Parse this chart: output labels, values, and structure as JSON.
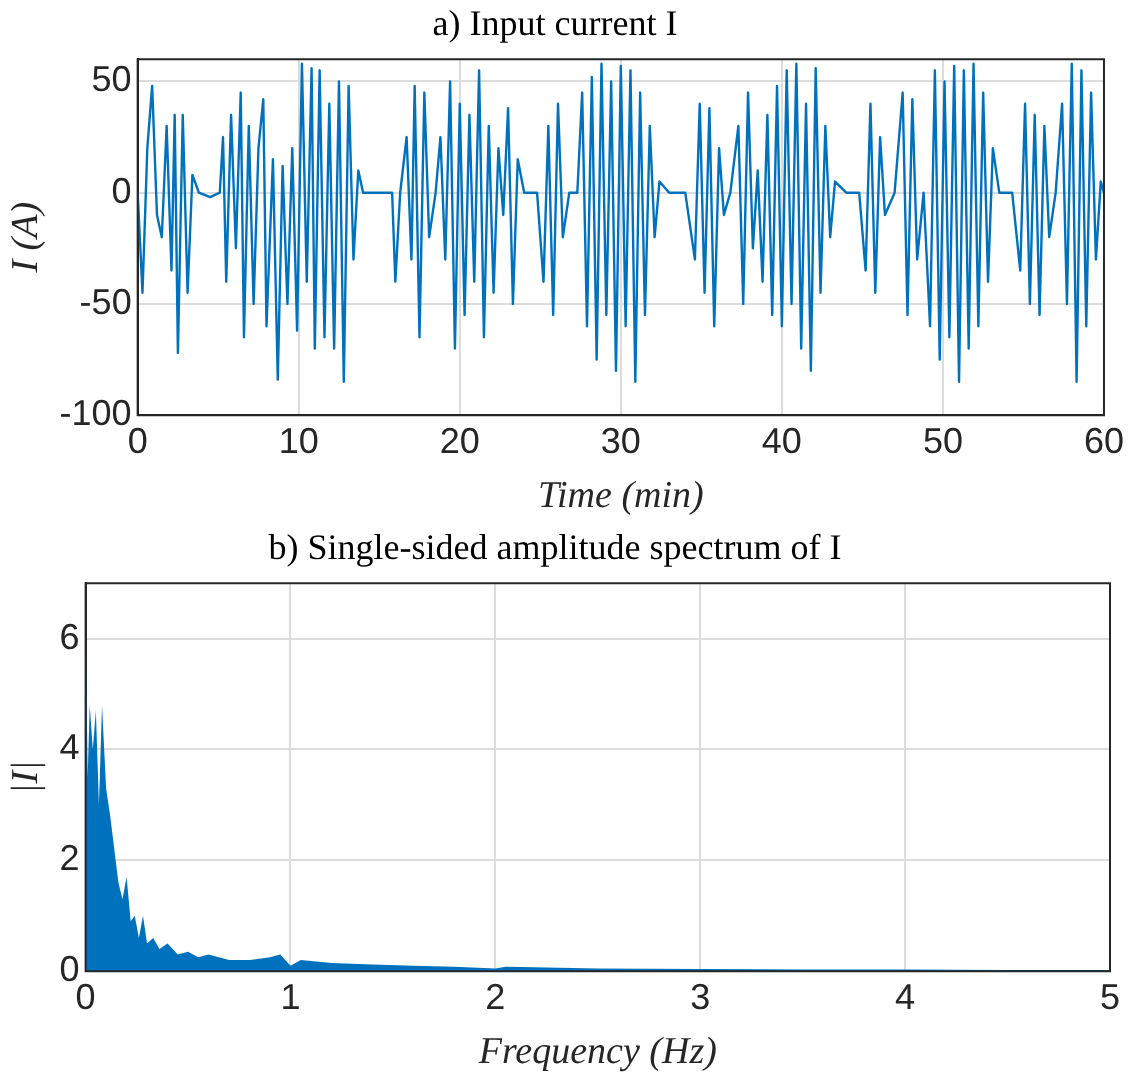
{
  "chart_data": [
    {
      "type": "line",
      "title": "a) Input current I",
      "xlabel": "Time (min)",
      "ylabel": "I (A)",
      "xlim": [
        0,
        60
      ],
      "xticks": [
        0,
        10,
        20,
        30,
        40,
        50,
        60
      ],
      "ylim": [
        -100,
        60
      ],
      "yticks": [
        -100,
        -50,
        0,
        50
      ],
      "grid": true,
      "legend": false,
      "marker": "none",
      "line_style": "solid",
      "series": [
        {
          "color": "#0072bd",
          "x": [
            0,
            0.3,
            0.6,
            0.9,
            1.2,
            1.5,
            1.8,
            2.1,
            2.3,
            2.5,
            2.8,
            3.1,
            3.4,
            3.8,
            4.5,
            5.1,
            5.3,
            5.5,
            5.8,
            6.1,
            6.4,
            6.6,
            6.9,
            7.2,
            7.5,
            7.8,
            8.0,
            8.4,
            8.7,
            9.0,
            9.3,
            9.6,
            9.9,
            10.2,
            10.5,
            10.8,
            11.0,
            11.3,
            11.6,
            11.9,
            12.2,
            12.5,
            12.8,
            13.1,
            13.4,
            13.7,
            14.0,
            15.0,
            15.8,
            16.0,
            16.3,
            16.7,
            17.0,
            17.2,
            17.5,
            17.8,
            18.1,
            18.5,
            18.8,
            19.1,
            19.4,
            19.7,
            20.0,
            20.3,
            20.6,
            20.9,
            21.2,
            21.5,
            21.8,
            22.1,
            22.4,
            22.7,
            23.0,
            23.3,
            23.6,
            24.0,
            24.8,
            25.2,
            25.5,
            25.8,
            26.1,
            26.4,
            26.8,
            27.3,
            27.6,
            27.9,
            28.2,
            28.5,
            28.8,
            29.1,
            29.4,
            29.7,
            30.0,
            30.3,
            30.6,
            30.9,
            31.2,
            31.5,
            31.8,
            32.1,
            32.4,
            33.0,
            34.0,
            34.6,
            34.9,
            35.2,
            35.5,
            35.8,
            36.1,
            36.4,
            36.8,
            37.3,
            37.6,
            37.9,
            38.2,
            38.5,
            38.8,
            39.1,
            39.4,
            39.7,
            40.0,
            40.3,
            40.6,
            40.9,
            41.2,
            41.5,
            41.8,
            42.1,
            42.4,
            42.7,
            43.0,
            43.3,
            44.0,
            44.8,
            45.2,
            45.5,
            45.8,
            46.1,
            46.4,
            47.0,
            47.5,
            47.8,
            48.1,
            48.4,
            48.8,
            49.2,
            49.5,
            49.8,
            50.1,
            50.4,
            50.7,
            51.0,
            51.3,
            51.6,
            51.9,
            52.2,
            52.5,
            52.8,
            53.1,
            53.5,
            54.3,
            54.8,
            55.1,
            55.4,
            55.7,
            56.0,
            56.3,
            56.6,
            57.0,
            57.4,
            57.7,
            58.0,
            58.3,
            58.6,
            58.9,
            59.2,
            59.5,
            59.8,
            60.0
          ],
          "values": [
            0,
            -45,
            20,
            48,
            -10,
            -20,
            30,
            -35,
            35,
            -72,
            35,
            -45,
            8,
            0,
            -2,
            0,
            25,
            -40,
            35,
            -25,
            45,
            -65,
            30,
            -50,
            20,
            42,
            -60,
            15,
            -84,
            12,
            -50,
            20,
            -62,
            58,
            -40,
            56,
            -70,
            55,
            -65,
            40,
            -70,
            50,
            -85,
            48,
            -30,
            10,
            0,
            0,
            0,
            -40,
            0,
            25,
            -30,
            48,
            -65,
            45,
            -20,
            0,
            25,
            -30,
            50,
            -70,
            40,
            -55,
            35,
            -40,
            55,
            -65,
            30,
            -45,
            20,
            -10,
            38,
            -50,
            15,
            0,
            0,
            -40,
            30,
            -55,
            40,
            -20,
            0,
            0,
            45,
            -60,
            52,
            -75,
            58,
            -55,
            50,
            -80,
            57,
            -60,
            55,
            -85,
            45,
            -55,
            30,
            -20,
            5,
            0,
            0,
            -30,
            40,
            -45,
            38,
            -60,
            20,
            -10,
            0,
            30,
            -50,
            45,
            -25,
            10,
            -40,
            35,
            -55,
            48,
            -60,
            55,
            -50,
            58,
            -70,
            40,
            -80,
            56,
            -45,
            30,
            -20,
            5,
            0,
            0,
            -35,
            40,
            -45,
            25,
            -10,
            0,
            45,
            -55,
            42,
            -30,
            0,
            -60,
            55,
            -75,
            50,
            -65,
            57,
            -85,
            55,
            -70,
            58,
            -60,
            45,
            -40,
            20,
            0,
            0,
            -35,
            40,
            -50,
            35,
            -55,
            30,
            -20,
            0,
            40,
            -50,
            58,
            -85,
            55,
            -60,
            45,
            -30,
            5,
            0
          ]
        }
      ]
    },
    {
      "type": "area",
      "title": "b) Single-sided amplitude spectrum of I",
      "xlabel": "Frequency (Hz)",
      "ylabel": "|I|",
      "xlim": [
        0,
        5
      ],
      "xticks": [
        0,
        1,
        2,
        3,
        4,
        5
      ],
      "ylim": [
        0,
        7
      ],
      "yticks": [
        0,
        2,
        4,
        6
      ],
      "grid": true,
      "legend": false,
      "series": [
        {
          "color": "#0072bd",
          "x": [
            0,
            0.01,
            0.02,
            0.035,
            0.05,
            0.065,
            0.08,
            0.1,
            0.12,
            0.14,
            0.16,
            0.18,
            0.2,
            0.22,
            0.24,
            0.26,
            0.28,
            0.3,
            0.33,
            0.36,
            0.4,
            0.45,
            0.5,
            0.55,
            0.6,
            0.7,
            0.8,
            0.9,
            0.95,
            1.0,
            1.05,
            1.2,
            1.4,
            1.6,
            1.8,
            2.0,
            2.05,
            2.5,
            3.0,
            3.5,
            4.0,
            4.5,
            5.0
          ],
          "values": [
            6.5,
            3.5,
            4.8,
            4.0,
            4.7,
            3.0,
            4.8,
            3.3,
            2.8,
            2.2,
            1.6,
            1.3,
            1.7,
            0.9,
            1.0,
            0.6,
            1.0,
            0.5,
            0.6,
            0.4,
            0.5,
            0.3,
            0.35,
            0.25,
            0.3,
            0.2,
            0.2,
            0.25,
            0.3,
            0.1,
            0.2,
            0.15,
            0.12,
            0.1,
            0.08,
            0.05,
            0.08,
            0.05,
            0.04,
            0.03,
            0.03,
            0.02,
            0.02
          ]
        }
      ]
    }
  ]
}
